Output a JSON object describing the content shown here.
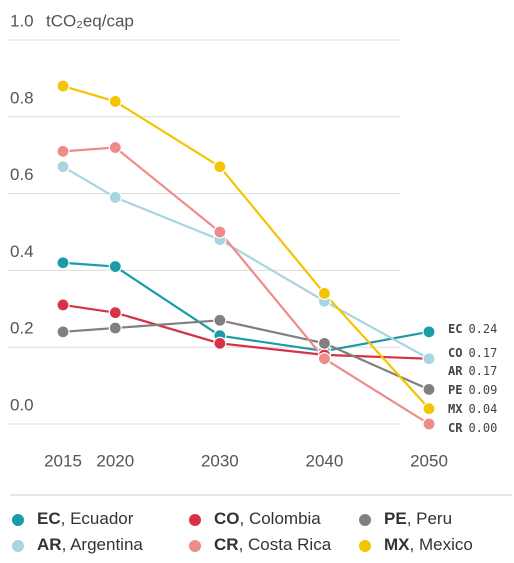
{
  "chart_data": {
    "type": "line",
    "y_label": "tCO₂eq/cap",
    "x": [
      2015,
      2020,
      2030,
      2040,
      2050
    ],
    "xlim": [
      2015,
      2050
    ],
    "xticks": [
      2015,
      2020,
      2030,
      2040,
      2050
    ],
    "ylim": [
      0,
      1
    ],
    "yticks": [
      {
        "value": 0,
        "label": "0.0"
      },
      0.2,
      0.4,
      0.6,
      0.8,
      {
        "value": 1,
        "label": "1.0"
      }
    ],
    "grid": true,
    "series": [
      {
        "code": "EC",
        "name": "Ecuador",
        "color": "#1a9ba8",
        "values": [
          0.42,
          0.41,
          0.23,
          0.19,
          0.24
        ],
        "value_labels": [
          null,
          null,
          null,
          null,
          "0.24"
        ]
      },
      {
        "code": "CO",
        "name": "Colombia",
        "color": "#d63446",
        "values": [
          0.31,
          0.29,
          0.21,
          0.18,
          0.17
        ],
        "value_labels": [
          null,
          null,
          null,
          null,
          "0.17"
        ]
      },
      {
        "code": "PE",
        "name": "Peru",
        "color": "#808080",
        "values": [
          0.24,
          0.25,
          0.27,
          0.21,
          0.09
        ],
        "value_labels": [
          null,
          null,
          null,
          null,
          "0.09"
        ]
      },
      {
        "code": "AR",
        "name": "Argentina",
        "color": "#a8d5e0",
        "values": [
          0.67,
          0.59,
          0.48,
          0.32,
          0.17
        ],
        "value_labels": [
          null,
          null,
          null,
          null,
          "0.17"
        ]
      },
      {
        "code": "CR",
        "name": "Costa Rica",
        "color": "#ef8b8b",
        "values": [
          0.71,
          0.72,
          0.5,
          0.17,
          0.0
        ],
        "value_labels": [
          null,
          null,
          null,
          null,
          "0.00"
        ]
      },
      {
        "code": "MX",
        "name": "Mexico",
        "color": "#f5c400",
        "values": [
          0.88,
          0.84,
          0.67,
          0.34,
          0.04
        ],
        "value_labels": [
          null,
          null,
          null,
          null,
          "0.04"
        ]
      }
    ]
  }
}
